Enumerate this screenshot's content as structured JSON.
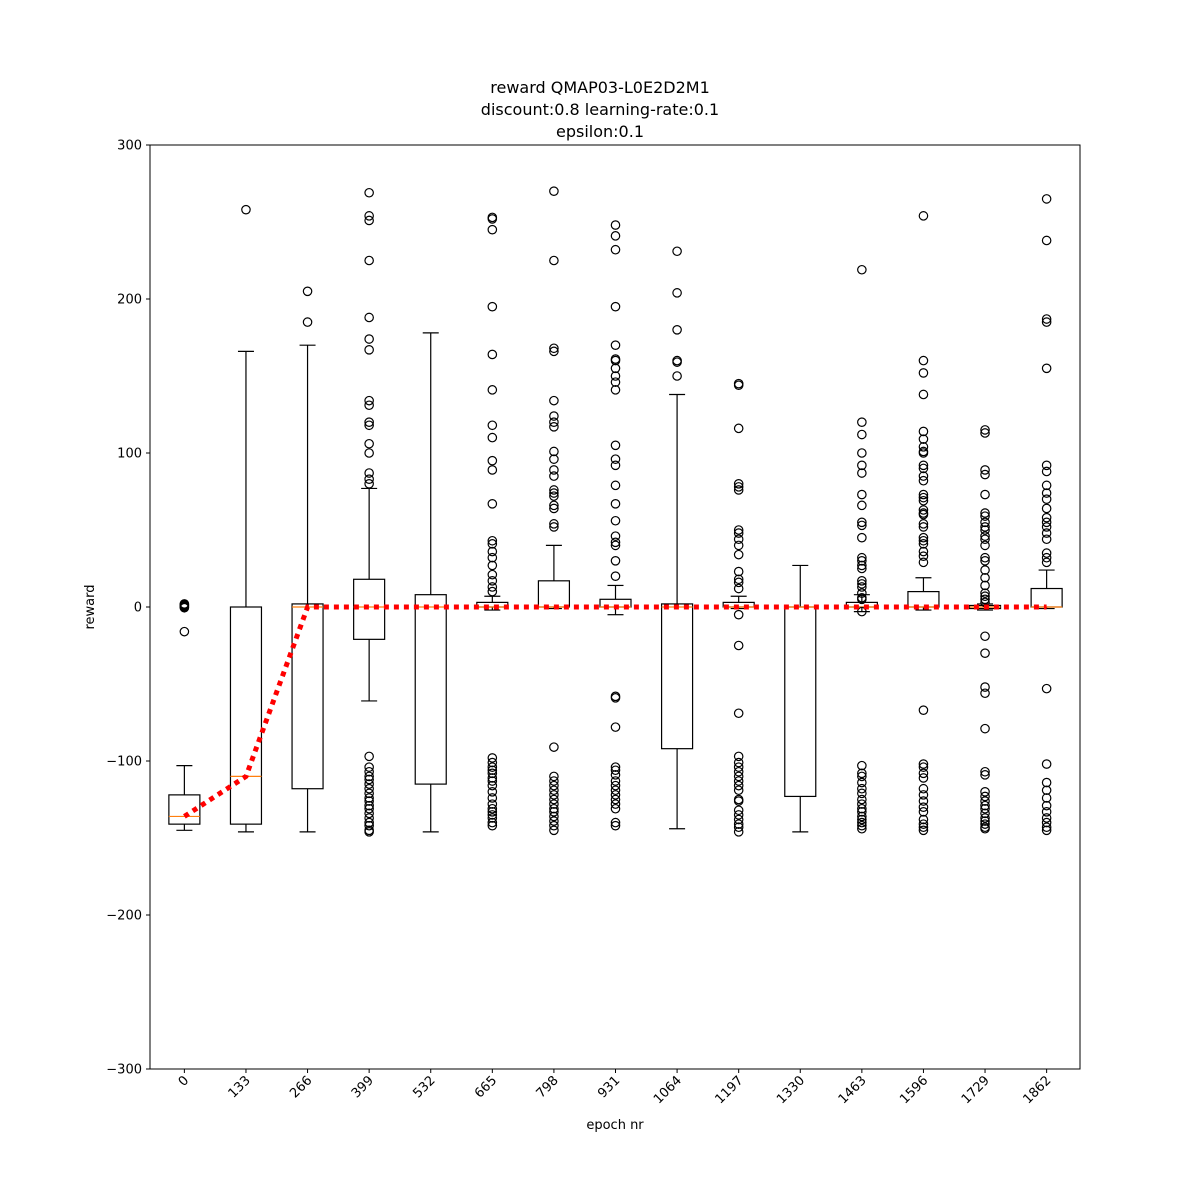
{
  "chart_data": {
    "type": "box",
    "title": [
      "reward QMAP03-L0E2D2M1",
      "discount:0.8 learning-rate:0.1",
      "epsilon:0.1"
    ],
    "xlabel": "epoch nr",
    "ylabel": "reward",
    "ylim": [
      -300,
      300
    ],
    "yticks": [
      300,
      200,
      100,
      0,
      -100,
      -200,
      -300
    ],
    "ytick_labels": [
      "300",
      "200",
      "100",
      "0",
      "−100",
      "−200",
      "−300"
    ],
    "categories": [
      "0",
      "133",
      "266",
      "399",
      "532",
      "665",
      "798",
      "931",
      "1064",
      "1197",
      "1330",
      "1463",
      "1596",
      "1729",
      "1862"
    ],
    "boxes": [
      {
        "whislo": -145,
        "q1": -141,
        "med": -136,
        "q3": -122,
        "whishi": -103,
        "fliers": [
          2,
          1.5,
          1,
          0.5,
          0,
          -0.5,
          -16
        ]
      },
      {
        "whislo": -146,
        "q1": -141,
        "med": -110,
        "q3": 0,
        "whishi": 166,
        "fliers": [
          258
        ]
      },
      {
        "whislo": -146,
        "q1": -118,
        "med": 0,
        "q3": 2,
        "whishi": 170,
        "fliers": [
          185,
          205
        ]
      },
      {
        "whislo": -61,
        "q1": -21,
        "med": 0,
        "q3": 18,
        "whishi": 77,
        "fliers": [
          269,
          254,
          251,
          225,
          188,
          174,
          167,
          134,
          131,
          120,
          118,
          106,
          100,
          87,
          83,
          80,
          -97,
          -104,
          -107,
          -110,
          -112,
          -115,
          -118,
          -121,
          -124,
          -126,
          -129,
          -131,
          -134,
          -137,
          -140,
          -142,
          -145,
          -146
        ]
      },
      {
        "whislo": -146,
        "q1": -115,
        "med": 0,
        "q3": 8,
        "whishi": 178,
        "fliers": []
      },
      {
        "whislo": -2,
        "q1": 0,
        "med": 0,
        "q3": 3,
        "whishi": 7,
        "fliers": [
          253,
          252,
          245,
          195,
          164,
          141,
          118,
          110,
          95,
          89,
          67,
          43,
          41,
          36,
          32,
          27,
          21,
          17,
          13,
          10,
          -98,
          -101,
          -104,
          -106,
          -108,
          -111,
          -113,
          -116,
          -120,
          -124,
          -128,
          -131,
          -133,
          -135,
          -137,
          -140,
          -142
        ]
      },
      {
        "whislo": -1,
        "q1": 0,
        "med": 0,
        "q3": 17,
        "whishi": 40,
        "fliers": [
          270,
          225,
          168,
          166,
          134,
          124,
          120,
          117,
          101,
          96,
          89,
          85,
          76,
          74,
          72,
          66,
          64,
          54,
          52,
          -91,
          -110,
          -113,
          -116,
          -119,
          -122,
          -125,
          -128,
          -131,
          -133,
          -136,
          -139,
          -142,
          -145
        ]
      },
      {
        "whislo": -5,
        "q1": 0,
        "med": 0,
        "q3": 5,
        "whishi": 14,
        "fliers": [
          248,
          241,
          232,
          195,
          170,
          161,
          160,
          155,
          150,
          146,
          141,
          105,
          96,
          92,
          79,
          67,
          56,
          46,
          42,
          40,
          30,
          20,
          -58,
          -59,
          -78,
          -104,
          -106,
          -109,
          -113,
          -116,
          -119,
          -122,
          -125,
          -128,
          -131,
          -140,
          -142
        ]
      },
      {
        "whislo": -144,
        "q1": -92,
        "med": 0,
        "q3": 2,
        "whishi": 138,
        "fliers": [
          231,
          204,
          180,
          160,
          159,
          150
        ]
      },
      {
        "whislo": -1,
        "q1": 0,
        "med": 0,
        "q3": 3,
        "whishi": 7,
        "fliers": [
          145,
          144,
          116,
          80,
          78,
          76,
          50,
          48,
          44,
          40,
          34,
          23,
          18,
          16,
          12,
          -5,
          -25,
          -69,
          -97,
          -101,
          -104,
          -107,
          -110,
          -113,
          -116,
          -119,
          -125,
          -126,
          -132,
          -135,
          -138,
          -141,
          -143,
          -146
        ]
      },
      {
        "whislo": -146,
        "q1": -123,
        "med": 0,
        "q3": 0,
        "whishi": 27,
        "fliers": []
      },
      {
        "whislo": -3,
        "q1": 0,
        "med": 0,
        "q3": 3,
        "whishi": 8,
        "fliers": [
          219,
          120,
          112,
          100,
          92,
          87,
          73,
          66,
          55,
          53,
          45,
          32,
          30,
          27,
          25,
          17,
          15,
          13,
          9,
          6,
          5,
          -3,
          -103,
          -108,
          -110,
          -114,
          -118,
          -121,
          -125,
          -128,
          -131,
          -133,
          -136,
          -138,
          -140,
          -142,
          -144
        ]
      },
      {
        "whislo": -2,
        "q1": 0,
        "med": 0,
        "q3": 10,
        "whishi": 19,
        "fliers": [
          254,
          160,
          152,
          138,
          114,
          109,
          104,
          101,
          100,
          92,
          90,
          85,
          82,
          73,
          71,
          69,
          63,
          61,
          60,
          54,
          52,
          45,
          43,
          41,
          36,
          33,
          29,
          -67,
          -102,
          -104,
          -108,
          -111,
          -118,
          -122,
          -126,
          -130,
          -133,
          -138,
          -141,
          -143,
          -145
        ]
      },
      {
        "whislo": -2,
        "q1": -1,
        "med": 0,
        "q3": 1,
        "whishi": 2,
        "fliers": [
          115,
          113,
          89,
          86,
          73,
          61,
          59,
          55,
          52,
          50,
          46,
          44,
          40,
          32,
          30,
          24,
          19,
          14,
          9,
          7,
          5,
          3,
          -19,
          -30,
          -52,
          -56,
          -79,
          -107,
          -109,
          -120,
          -123,
          -126,
          -129,
          -131,
          -134,
          -137,
          -139,
          -141,
          -143,
          -144
        ]
      },
      {
        "whislo": -1,
        "q1": 0,
        "med": 0,
        "q3": 12,
        "whishi": 24,
        "fliers": [
          265,
          238,
          187,
          185,
          155,
          92,
          88,
          79,
          74,
          70,
          64,
          58,
          55,
          52,
          48,
          44,
          35,
          32,
          29,
          -53,
          -102,
          -114,
          -119,
          -124,
          -129,
          -133,
          -137,
          -140,
          -143,
          -145
        ]
      }
    ],
    "trend_line": {
      "values": [
        -136,
        -110,
        0,
        0,
        0,
        0,
        0,
        0,
        0,
        0,
        0,
        0,
        0,
        0,
        0
      ],
      "color": "#ff0000",
      "style": "dotted"
    },
    "median_color": "#ff7f0e",
    "box_color": "#000000",
    "grid": false,
    "legend": "none",
    "xtick_rotation": 45
  }
}
